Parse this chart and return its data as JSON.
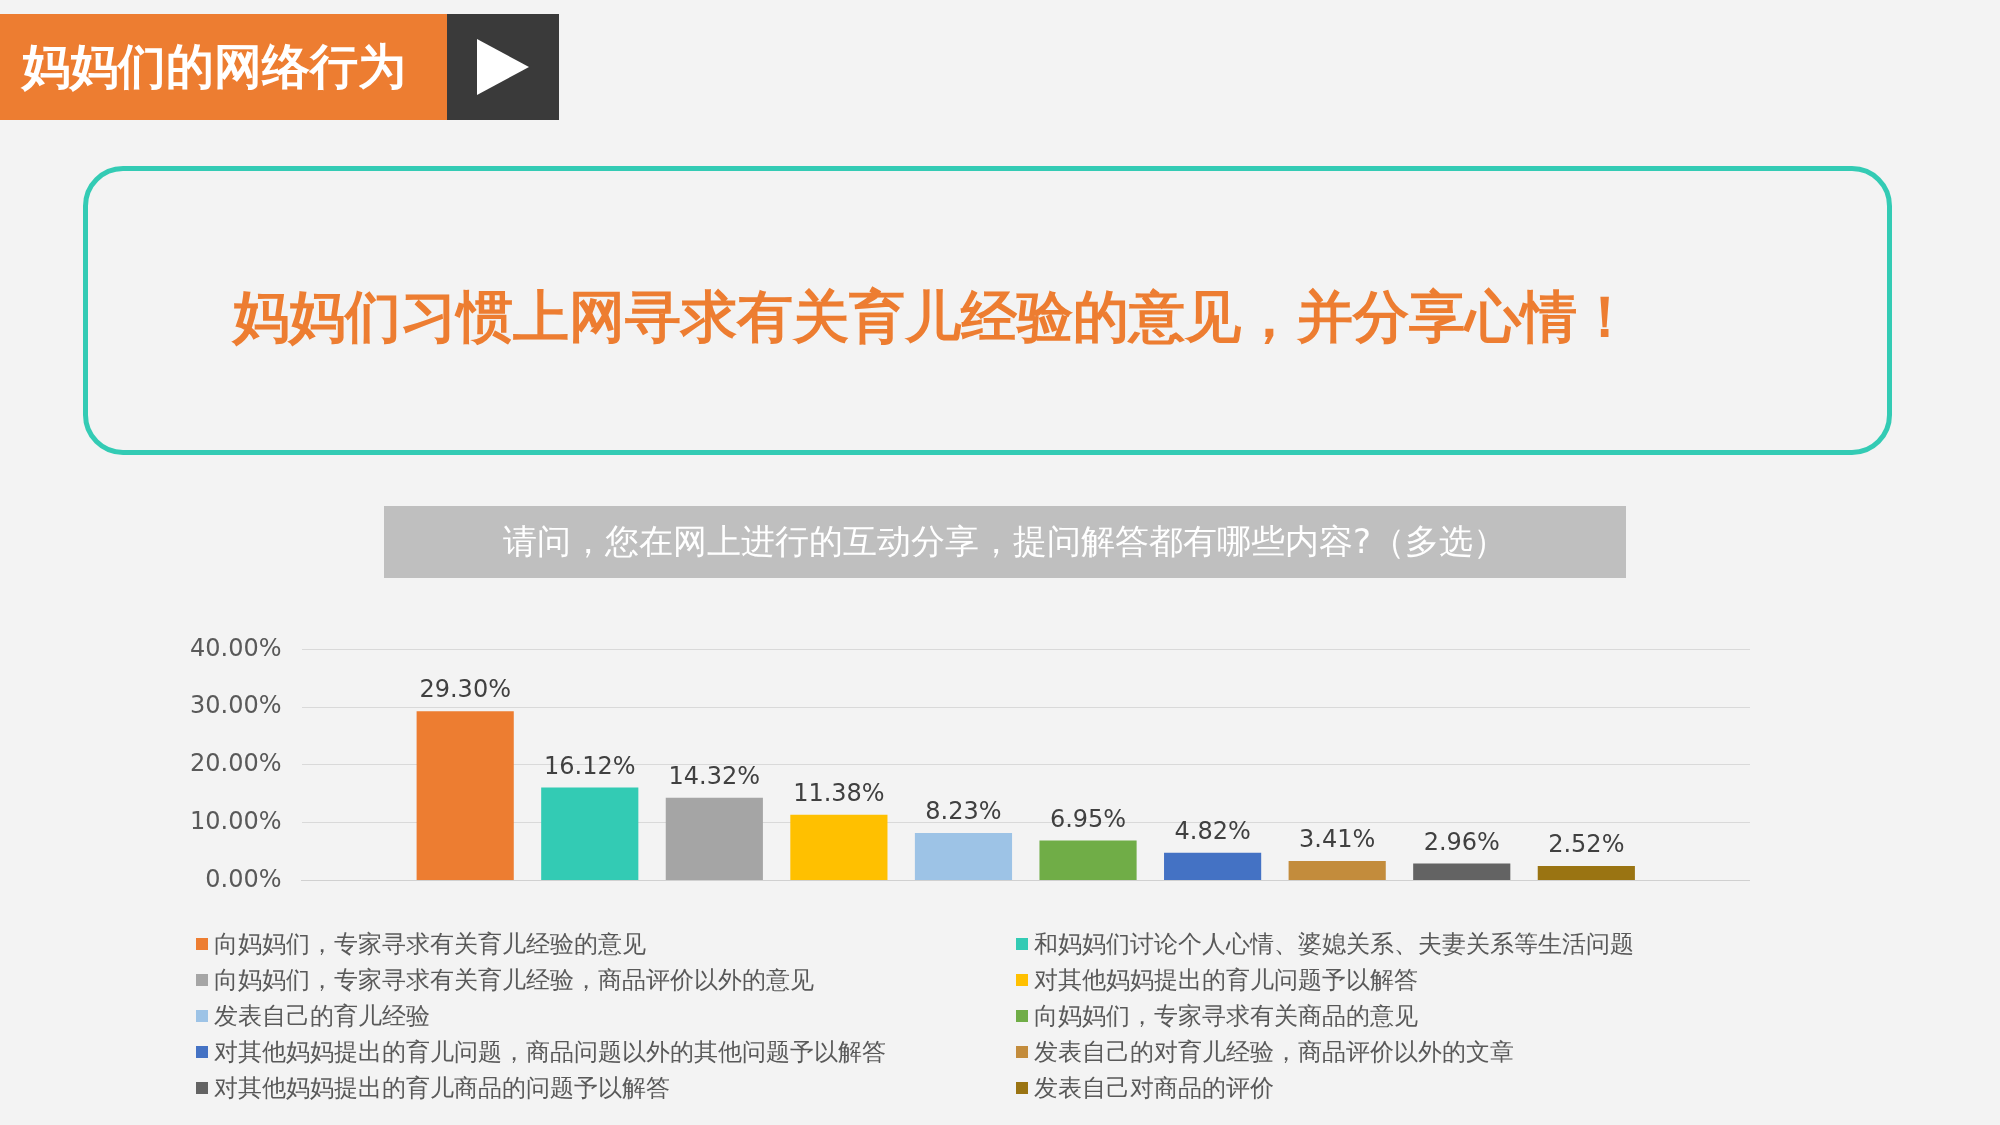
{
  "chart_data": {
    "type": "bar",
    "title": "请问，您在网上进行的互动分享，提问解答都有哪些内容?（多选）",
    "annotations": [
      "妈妈们的网络行为",
      "妈妈们习惯上网寻求有关育儿经验的意见，并分享心情！"
    ],
    "categories": [
      null
    ],
    "series": [
      {
        "name": "向妈妈们，专家寻求有关育儿经验的意见",
        "color": "#ed7d31",
        "values": [
          29.3
        ],
        "value_labels": [
          "29.30%"
        ]
      },
      {
        "name": "和妈妈们讨论个人心情、婆媳关系、夫妻关系等生活问题",
        "color": "#33cbb4",
        "values": [
          16.12
        ],
        "value_labels": [
          "16.12%"
        ]
      },
      {
        "name": "向妈妈们，专家寻求有关育儿经验，商品评价以外的意见",
        "color": "#a5a5a5",
        "values": [
          14.32
        ],
        "value_labels": [
          "14.32%"
        ]
      },
      {
        "name": "对其他妈妈提出的育儿问题予以解答",
        "color": "#ffc000",
        "values": [
          11.38
        ],
        "value_labels": [
          "11.38%"
        ]
      },
      {
        "name": "发表自己的育儿经验",
        "color": "#9dc3e6",
        "values": [
          8.23
        ],
        "value_labels": [
          "8.23%"
        ]
      },
      {
        "name": "向妈妈们，专家寻求有关商品的意见",
        "color": "#70ad47",
        "values": [
          6.95
        ],
        "value_labels": [
          "6.95%"
        ]
      },
      {
        "name": "对其他妈妈提出的育儿问题，商品问题以外的其他问题予以解答",
        "color": "#4472c4",
        "values": [
          4.82
        ],
        "value_labels": [
          "4.82%"
        ]
      },
      {
        "name": "发表自己的对育儿经验，商品评价以外的文章",
        "color": "#c38c3c",
        "values": [
          3.41
        ],
        "value_labels": [
          "3.41%"
        ]
      },
      {
        "name": "对其他妈妈提出的育儿商品的问题予以解答",
        "color": "#636363",
        "values": [
          2.96
        ],
        "value_labels": [
          "2.96%"
        ]
      },
      {
        "name": "发表自己对商品的评价",
        "color": "#9a7412",
        "values": [
          2.52
        ],
        "value_labels": [
          "2.52%"
        ]
      }
    ],
    "ylim": [
      0,
      40
    ],
    "yticks": [
      {
        "value": 0,
        "label": "0.00%"
      },
      {
        "value": 10,
        "label": "10.00%"
      },
      {
        "value": 20,
        "label": "20.00%"
      },
      {
        "value": 30,
        "label": "30.00%"
      },
      {
        "value": 40,
        "label": "40.00%"
      }
    ],
    "grid": "y",
    "legend": "bottom",
    "tick_labels": "y"
  }
}
